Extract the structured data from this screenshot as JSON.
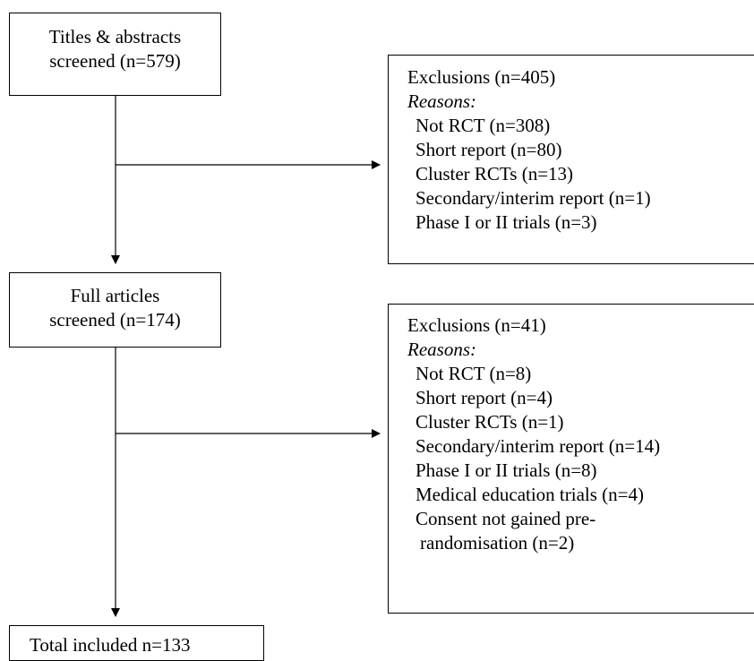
{
  "screened": {
    "line1": "Titles & abstracts",
    "line2": "screened (n=579)"
  },
  "exclusions_1": {
    "title": "Exclusions (n=405)",
    "reasons_label": "Reasons:",
    "reasons": [
      "Not RCT (n=308)",
      "Short report (n=80)",
      "Cluster RCTs (n=13)",
      "Secondary/interim report (n=1)",
      "Phase I or II trials (n=3)"
    ]
  },
  "full_articles": {
    "line1": "Full articles",
    "line2": "screened (n=174)"
  },
  "exclusions_2": {
    "title": "Exclusions (n=41)",
    "reasons_label": "Reasons:",
    "reasons": [
      "Not RCT (n=8)",
      "Short report (n=4)",
      "Cluster RCTs (n=1)",
      "Secondary/interim report (n=14)",
      "Phase I or II trials (n=8)",
      "Medical education trials (n=4)",
      "Consent not gained pre-",
      "randomisation (n=2)"
    ]
  },
  "total": {
    "label": "Total included n=133"
  },
  "colors": {
    "stroke": "#000000",
    "background": "#ffffff"
  }
}
